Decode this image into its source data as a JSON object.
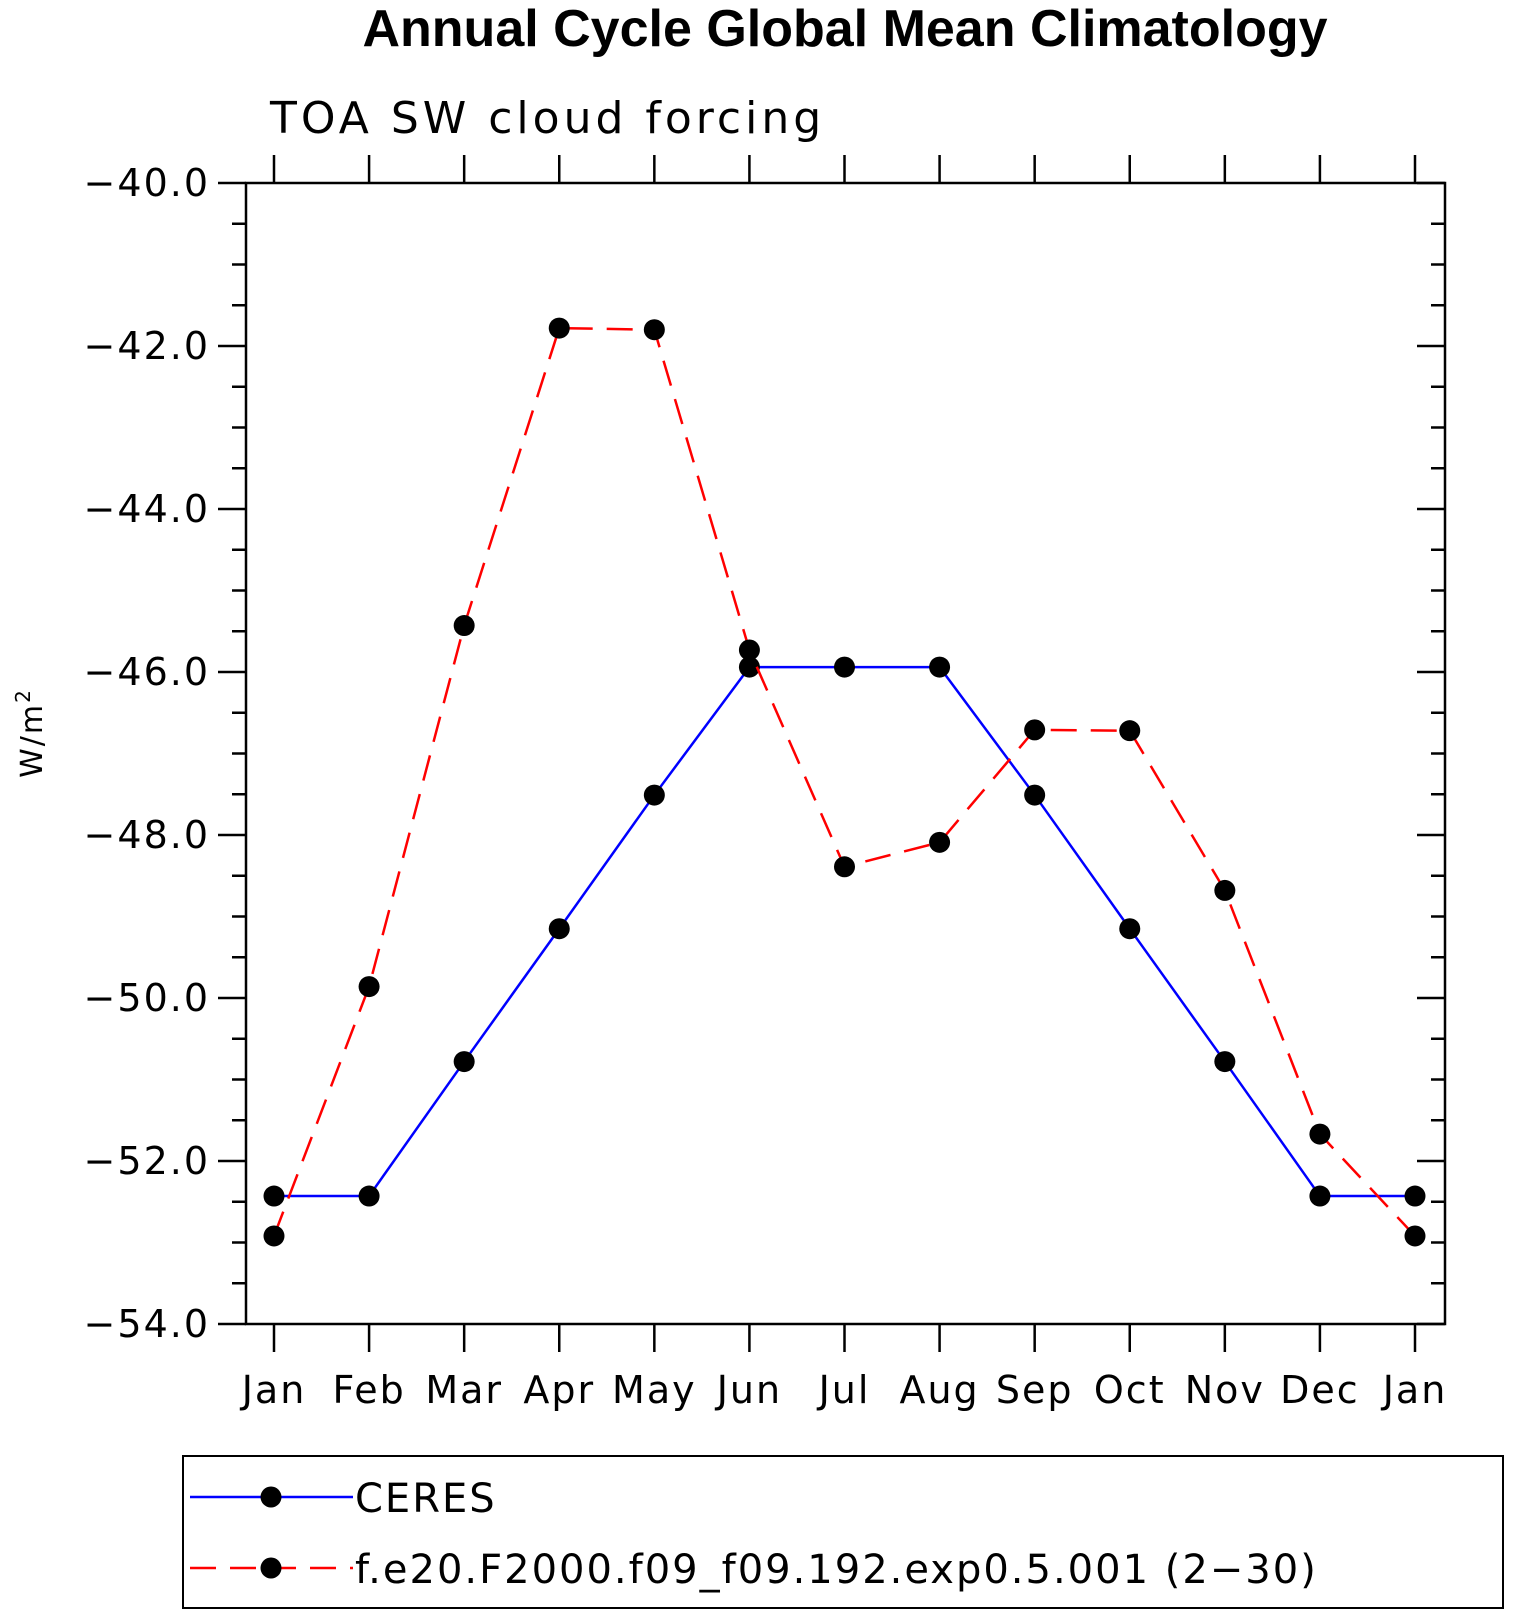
{
  "chart_data": {
    "type": "line",
    "title": "Annual Cycle Global Mean Climatology",
    "subtitle": "TOA SW cloud forcing",
    "xlabel": "",
    "ylabel_base": "W/m",
    "ylabel_sup": "2",
    "categories": [
      "Jan",
      "Feb",
      "Mar",
      "Apr",
      "May",
      "Jun",
      "Jul",
      "Aug",
      "Sep",
      "Oct",
      "Nov",
      "Dec",
      "Jan"
    ],
    "ylim": [
      -54.0,
      -40.0
    ],
    "yticks": [
      -40.0,
      -42.0,
      -44.0,
      -46.0,
      -48.0,
      -50.0,
      -52.0,
      -54.0
    ],
    "ytick_labels": [
      "−40.0",
      "−42.0",
      "−44.0",
      "−46.0",
      "−48.0",
      "−50.0",
      "−52.0",
      "−54.0"
    ],
    "series": [
      {
        "name": "CERES",
        "color": "#0000ff",
        "dash": "solid",
        "values": [
          -52.43,
          -52.43,
          -50.78,
          -49.15,
          -47.51,
          -45.94,
          -45.94,
          -45.94,
          -47.51,
          -49.15,
          -50.78,
          -52.43,
          -52.43
        ]
      },
      {
        "name": "f.e20.F2000.f09_f09.192.exp0.5.001 (2−30)",
        "color": "#ff0000",
        "dash": "dashed",
        "values": [
          -52.92,
          -49.86,
          -45.43,
          -41.78,
          -41.8,
          -45.73,
          -48.39,
          -48.09,
          -46.71,
          -46.72,
          -48.68,
          -51.67,
          -52.92
        ]
      }
    ],
    "marker_color": "#000000",
    "legend_position": "bottom"
  }
}
